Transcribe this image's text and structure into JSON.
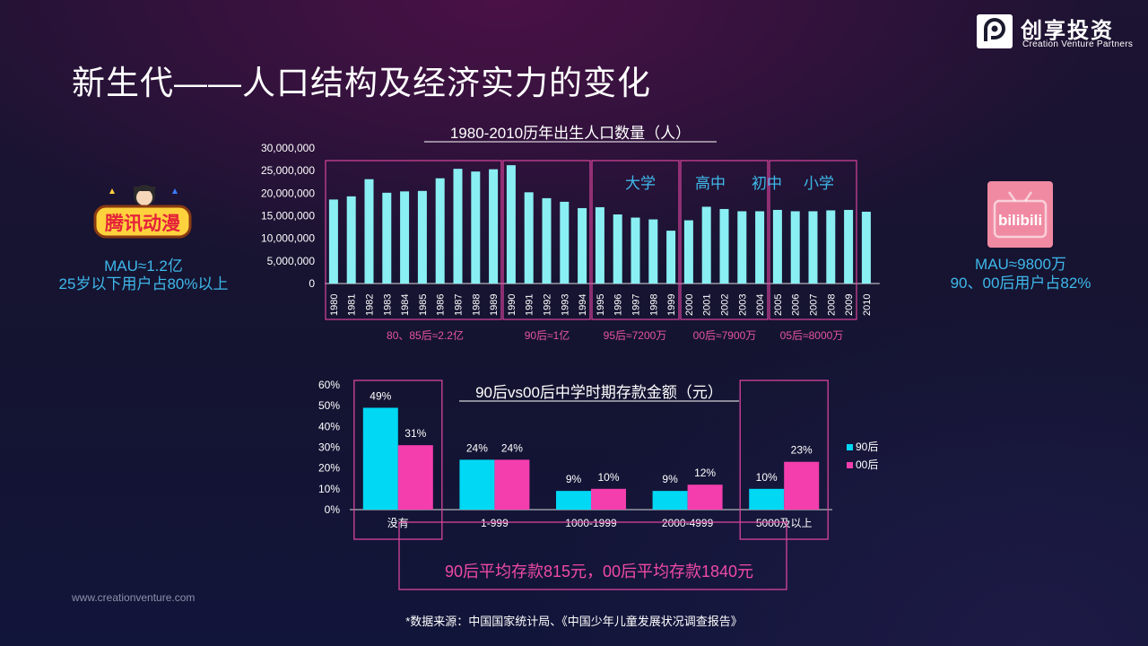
{
  "title": "新生代——人口结构及经济实力的变化",
  "brand": {
    "name": "创享投资",
    "sub": "Creation Venture Partners"
  },
  "left_app": {
    "logo_text": "腾讯动漫",
    "mau": "MAU≈1.2亿",
    "desc": "25岁以下用户占80%以上"
  },
  "right_app": {
    "logo_text": "bilibili",
    "mau": "MAU≈9800万",
    "desc": "90、00后用户占82%"
  },
  "website": "www.creationventure.com",
  "source": "*数据来源：中国国家统计局、《中国少年儿童发展状况调查报告》",
  "colors": {
    "cyan": "#89eff3",
    "cyan2": "#00d8f4",
    "pink": "#f43eae",
    "frame": "#d7449c",
    "label_pink": "#e6549f",
    "blue_text": "#3fb8ea"
  },
  "chart_data": [
    {
      "type": "bar",
      "title": "1980-2010历年出生人口数量（人）",
      "categories": [
        "1980",
        "1981",
        "1982",
        "1983",
        "1984",
        "1985",
        "1986",
        "1987",
        "1988",
        "1989",
        "1990",
        "1991",
        "1992",
        "1993",
        "1994",
        "1995",
        "1996",
        "1997",
        "1998",
        "1999",
        "2000",
        "2001",
        "2002",
        "2003",
        "2004",
        "2005",
        "2006",
        "2007",
        "2008",
        "2009",
        "2010"
      ],
      "values": [
        18600000,
        19300000,
        23100000,
        20100000,
        20400000,
        20500000,
        23300000,
        25400000,
        24800000,
        25300000,
        26200000,
        20200000,
        18900000,
        18100000,
        16700000,
        16900000,
        15300000,
        14600000,
        14200000,
        11700000,
        14000000,
        17000000,
        16500000,
        16000000,
        16000000,
        16300000,
        16000000,
        16000000,
        16200000,
        16300000,
        15900000
      ],
      "ylim": [
        0,
        30000000
      ],
      "yticks": [
        "0",
        "5,000,000",
        "10,000,000",
        "15,000,000",
        "20,000,000",
        "25,000,000",
        "30,000,000"
      ],
      "stage_labels": [
        "大学",
        "高中",
        "初中",
        "小学"
      ],
      "group_labels": [
        "80、85后≈2.2亿",
        "90后≈1亿",
        "95后≈7200万",
        "00后≈7900万",
        "05后≈8000万"
      ]
    },
    {
      "type": "bar",
      "title": "90后vs00后中学时期存款金额（元）",
      "categories": [
        "没有",
        "1-999",
        "1000-1999",
        "2000-4999",
        "5000及以上"
      ],
      "series": [
        {
          "name": "90后",
          "values": [
            49,
            24,
            9,
            9,
            10
          ],
          "labels": [
            "49%",
            "24%",
            "9%",
            "9%",
            "10%"
          ]
        },
        {
          "name": "00后",
          "values": [
            31,
            24,
            10,
            12,
            23
          ],
          "labels": [
            "31%",
            "24%",
            "10%",
            "12%",
            "23%"
          ]
        }
      ],
      "ylim": [
        0,
        60
      ],
      "yticks": [
        "0%",
        "10%",
        "20%",
        "30%",
        "40%",
        "50%",
        "60%"
      ],
      "summary": "90后平均存款815元，00后平均存款1840元"
    }
  ]
}
